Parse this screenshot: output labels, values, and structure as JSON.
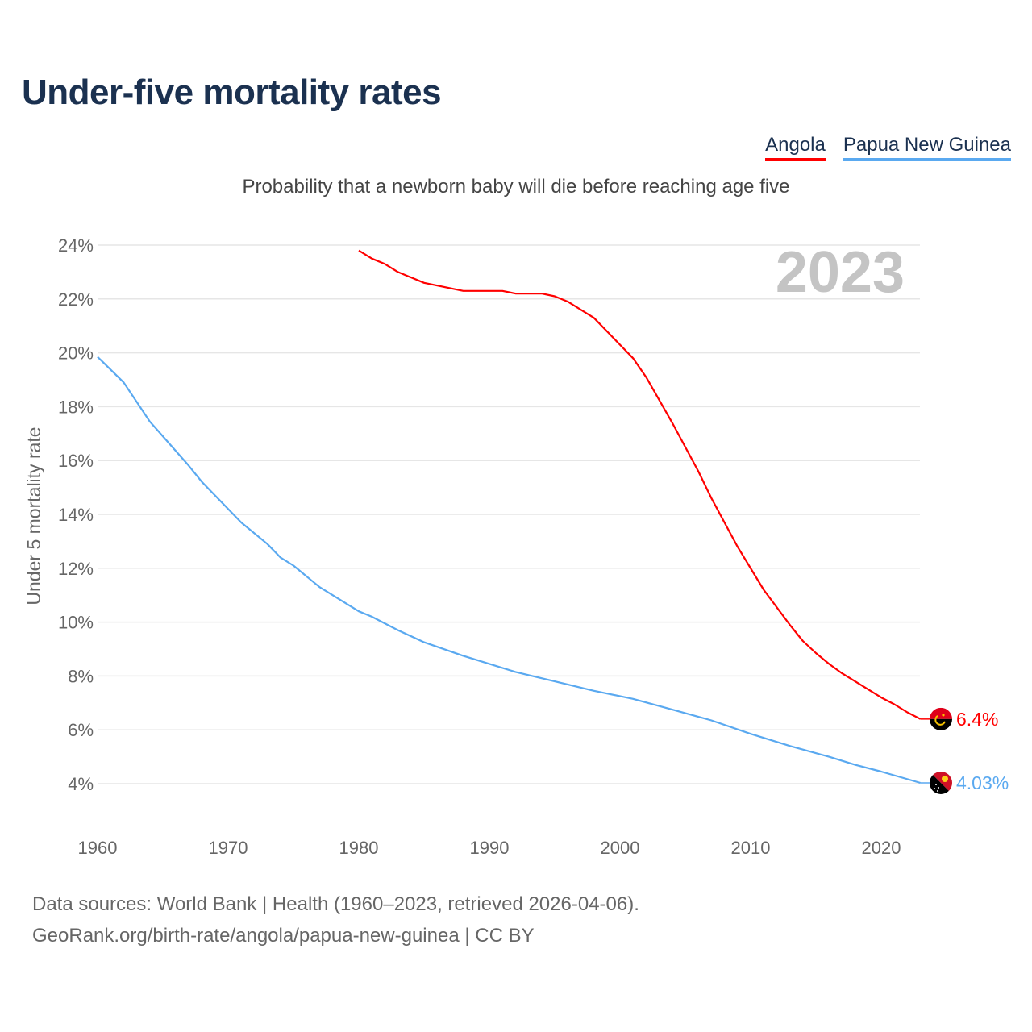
{
  "chart_data": {
    "type": "line",
    "title": "Under-five mortality rates",
    "subtitle": "Probability that a newborn baby will die before reaching age five",
    "ylabel": "Under 5 mortality rate",
    "xlabel": "",
    "xlim": [
      1960,
      2023
    ],
    "ylim": [
      4,
      24
    ],
    "x_ticks": [
      "1960",
      "1970",
      "1980",
      "1990",
      "2000",
      "2010",
      "2020"
    ],
    "y_ticks": [
      "4%",
      "6%",
      "8%",
      "10%",
      "12%",
      "14%",
      "16%",
      "18%",
      "20%",
      "22%",
      "24%"
    ],
    "grid": true,
    "legend_position": "top-right",
    "year_watermark": "2023",
    "series": [
      {
        "name": "Angola",
        "color": "#ff0000",
        "end_label": "6.4%",
        "flag": "angola-flag",
        "x": [
          1980,
          1981,
          1982,
          1983,
          1985,
          1988,
          1991,
          1992,
          1994,
          1995,
          1996,
          1998,
          2000,
          2001,
          2002,
          2004,
          2006,
          2007,
          2009,
          2011,
          2013,
          2014,
          2015,
          2016,
          2017,
          2018,
          2019,
          2020,
          2021,
          2022,
          2023
        ],
        "y": [
          23.8,
          23.5,
          23.3,
          23.0,
          22.6,
          22.3,
          22.3,
          22.2,
          22.2,
          22.1,
          21.9,
          21.3,
          20.3,
          19.8,
          19.1,
          17.4,
          15.6,
          14.6,
          12.8,
          11.2,
          9.9,
          9.3,
          8.85,
          8.45,
          8.1,
          7.8,
          7.5,
          7.2,
          6.95,
          6.65,
          6.4
        ]
      },
      {
        "name": "Papua New Guinea",
        "color": "#5aa9f0",
        "end_label": "4.03%",
        "flag": "papua-new-guinea-flag",
        "x": [
          1960,
          1962,
          1964,
          1965,
          1966,
          1967,
          1968,
          1971,
          1973,
          1974,
          1975,
          1977,
          1980,
          1981,
          1983,
          1985,
          1988,
          1990,
          1992,
          1995,
          1998,
          2001,
          2004,
          2007,
          2010,
          2013,
          2016,
          2018,
          2020,
          2023
        ],
        "y": [
          19.85,
          18.9,
          17.45,
          16.9,
          16.35,
          15.8,
          15.2,
          13.7,
          12.9,
          12.4,
          12.1,
          11.3,
          10.4,
          10.2,
          9.7,
          9.25,
          8.75,
          8.45,
          8.15,
          7.8,
          7.45,
          7.15,
          6.75,
          6.35,
          5.85,
          5.4,
          5.0,
          4.7,
          4.45,
          4.03
        ]
      }
    ]
  },
  "legend": [
    "Angola",
    "Papua New Guinea"
  ],
  "footer": {
    "source": "Data sources: World Bank | Health (1960–2023, retrieved 2026-04-06).",
    "link": "GeoRank.org/birth-rate/angola/papua-new-guinea | CC BY"
  }
}
